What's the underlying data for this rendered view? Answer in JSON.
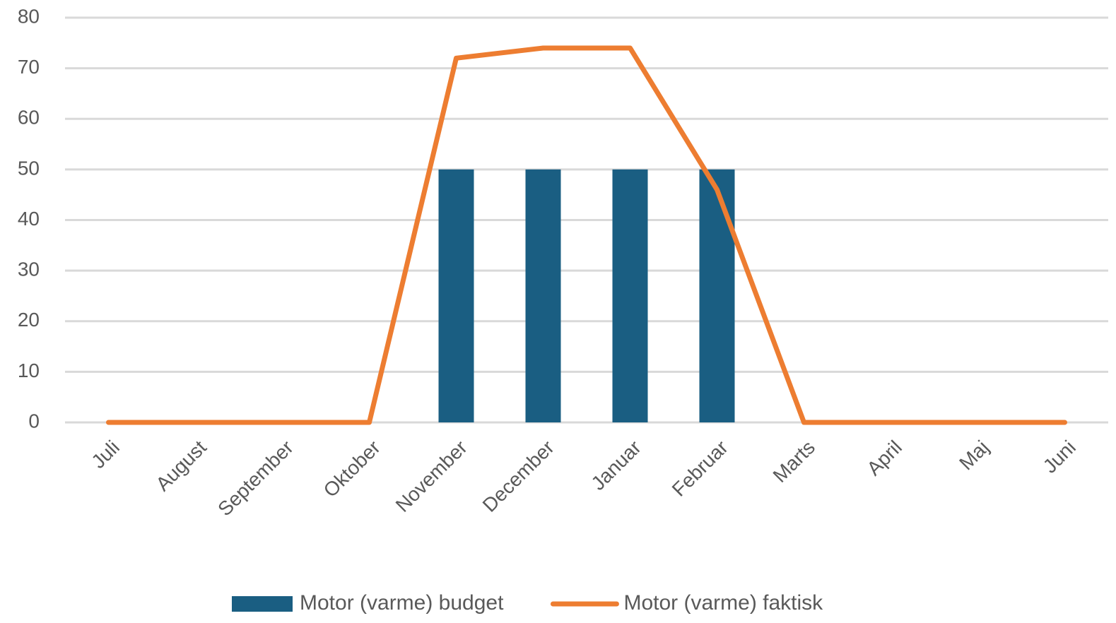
{
  "chart_data": {
    "type": "combo",
    "categories": [
      "Juli",
      "August",
      "September",
      "Oktober",
      "November",
      "December",
      "Januar",
      "Februar",
      "Marts",
      "April",
      "Maj",
      "Juni"
    ],
    "series": [
      {
        "name": "Motor (varme) budget",
        "type": "bar",
        "color": "#1a5e82",
        "values": [
          0,
          0,
          0,
          0,
          50,
          50,
          50,
          50,
          0,
          0,
          0,
          0
        ]
      },
      {
        "name": "Motor (varme) faktisk",
        "type": "line",
        "color": "#ed7d31",
        "values": [
          0,
          0,
          0,
          0,
          72,
          74,
          74,
          46,
          0,
          0,
          0,
          0
        ]
      }
    ],
    "ylim": [
      0,
      80
    ],
    "yticks": [
      0,
      10,
      20,
      30,
      40,
      50,
      60,
      70,
      80
    ],
    "grid": true,
    "legend": "bottom"
  }
}
